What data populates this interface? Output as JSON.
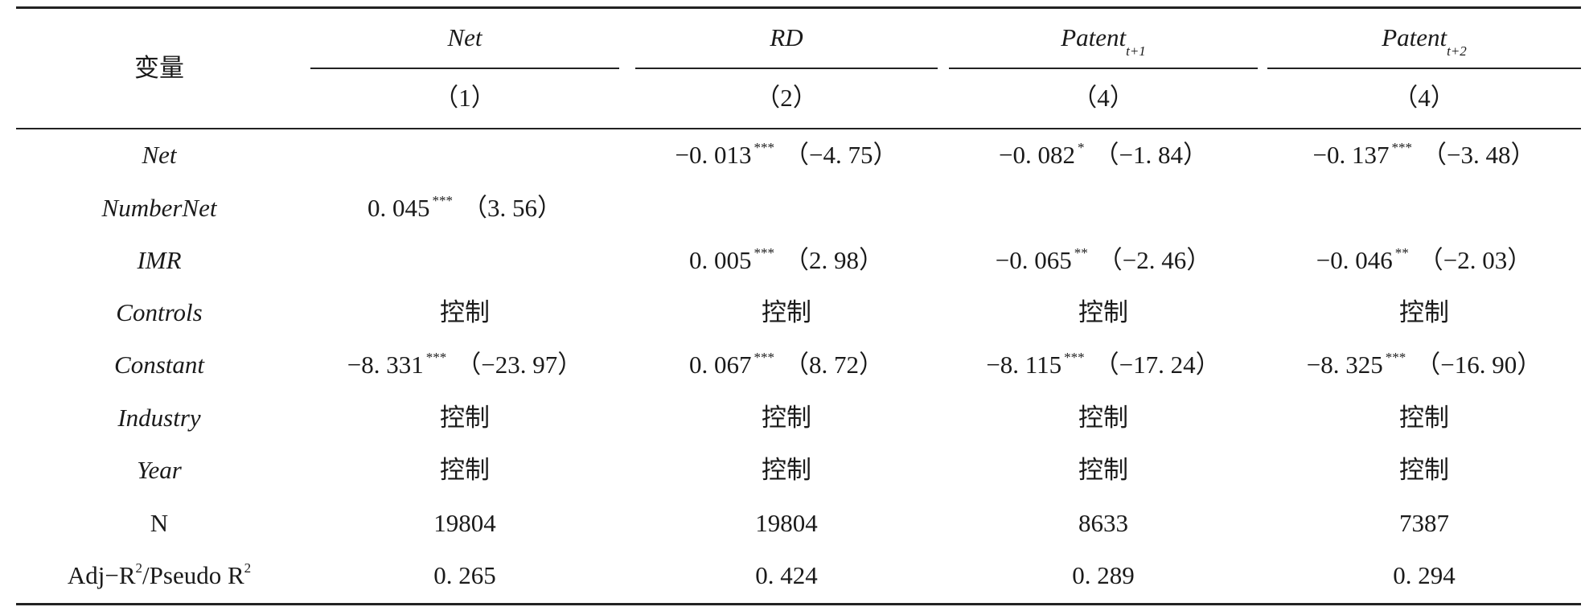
{
  "table": {
    "header": {
      "variable_label": "变量",
      "dep_vars": [
        {
          "main": "Net",
          "sub": ""
        },
        {
          "main": "RD",
          "sub": ""
        },
        {
          "main": "Patent",
          "sub": "t+1"
        },
        {
          "main": "Patent",
          "sub": "t+2"
        }
      ],
      "model_numbers": [
        "（1）",
        "（2）",
        "（4）",
        "（4）"
      ]
    },
    "rows": [
      {
        "label": "Net",
        "cells": [
          {
            "coef": "",
            "sig": "",
            "t": ""
          },
          {
            "coef": "−0. 013",
            "sig": "***",
            "t": "（−4. 75）"
          },
          {
            "coef": "−0. 082",
            "sig": "*",
            "t": "（−1. 84）"
          },
          {
            "coef": "−0. 137",
            "sig": "***",
            "t": "（−3. 48）"
          }
        ]
      },
      {
        "label": "NumberNet",
        "cells": [
          {
            "coef": "0. 045",
            "sig": "***",
            "t": "（3. 56）"
          },
          {
            "coef": "",
            "sig": "",
            "t": ""
          },
          {
            "coef": "",
            "sig": "",
            "t": ""
          },
          {
            "coef": "",
            "sig": "",
            "t": ""
          }
        ]
      },
      {
        "label": "IMR",
        "cells": [
          {
            "coef": "",
            "sig": "",
            "t": ""
          },
          {
            "coef": "0. 005",
            "sig": "***",
            "t": "（2. 98）"
          },
          {
            "coef": "−0. 065",
            "sig": "**",
            "t": "（−2. 46）"
          },
          {
            "coef": "−0. 046",
            "sig": "**",
            "t": "（−2. 03）"
          }
        ]
      },
      {
        "label": "Controls",
        "cells": [
          {
            "text": "控制"
          },
          {
            "text": "控制"
          },
          {
            "text": "控制"
          },
          {
            "text": "控制"
          }
        ]
      },
      {
        "label": "Constant",
        "cells": [
          {
            "coef": "−8. 331",
            "sig": "***",
            "t": "（−23. 97）"
          },
          {
            "coef": "0. 067",
            "sig": "***",
            "t": "（8. 72）"
          },
          {
            "coef": "−8. 115",
            "sig": "***",
            "t": "（−17. 24）"
          },
          {
            "coef": "−8. 325",
            "sig": "***",
            "t": "（−16. 90）"
          }
        ]
      },
      {
        "label": "Industry",
        "cells": [
          {
            "text": "控制"
          },
          {
            "text": "控制"
          },
          {
            "text": "控制"
          },
          {
            "text": "控制"
          }
        ]
      },
      {
        "label": "Year",
        "cells": [
          {
            "text": "控制"
          },
          {
            "text": "控制"
          },
          {
            "text": "控制"
          },
          {
            "text": "控制"
          }
        ]
      }
    ],
    "n_row": {
      "label": "N",
      "values": [
        "19804",
        "19804",
        "8633",
        "7387"
      ]
    },
    "r2_row": {
      "label_a": "Adj−R",
      "label_b": "/Pseudo R",
      "exponent": "2",
      "values": [
        "0. 265",
        "0. 424",
        "0. 289",
        "0. 294"
      ]
    }
  }
}
